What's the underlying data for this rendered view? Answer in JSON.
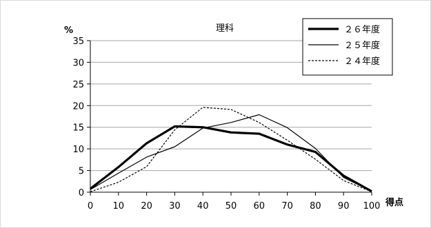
{
  "chart_data": {
    "type": "line",
    "title": "理科",
    "y_unit": "%",
    "xlabel": "得点",
    "ylabel": "",
    "xlim": [
      0,
      100
    ],
    "ylim": [
      0,
      35
    ],
    "x_ticks": [
      0,
      10,
      20,
      30,
      40,
      50,
      60,
      70,
      80,
      90,
      100
    ],
    "y_ticks": [
      0,
      5,
      10,
      15,
      20,
      25,
      30,
      35
    ],
    "grid": {
      "y": true,
      "x": false
    },
    "legend_position": "top-right",
    "x": [
      0,
      10,
      20,
      30,
      40,
      50,
      60,
      70,
      80,
      90,
      100
    ],
    "series": [
      {
        "name": "２６年度",
        "style": "thick",
        "color": "#000000",
        "values": [
          0.8,
          5.8,
          11.3,
          15.2,
          15.0,
          13.8,
          13.5,
          11.0,
          9.3,
          3.8,
          0.2
        ]
      },
      {
        "name": "２５年度",
        "style": "thin",
        "color": "#000000",
        "values": [
          0.6,
          4.4,
          8.1,
          10.5,
          14.8,
          16.1,
          17.9,
          14.9,
          10.1,
          3.4,
          0.2
        ]
      },
      {
        "name": "２４年度",
        "style": "dashed",
        "color": "#000000",
        "values": [
          0.1,
          2.3,
          5.9,
          14.4,
          19.6,
          19.1,
          16.1,
          12.0,
          7.6,
          2.7,
          0.1
        ]
      }
    ]
  }
}
